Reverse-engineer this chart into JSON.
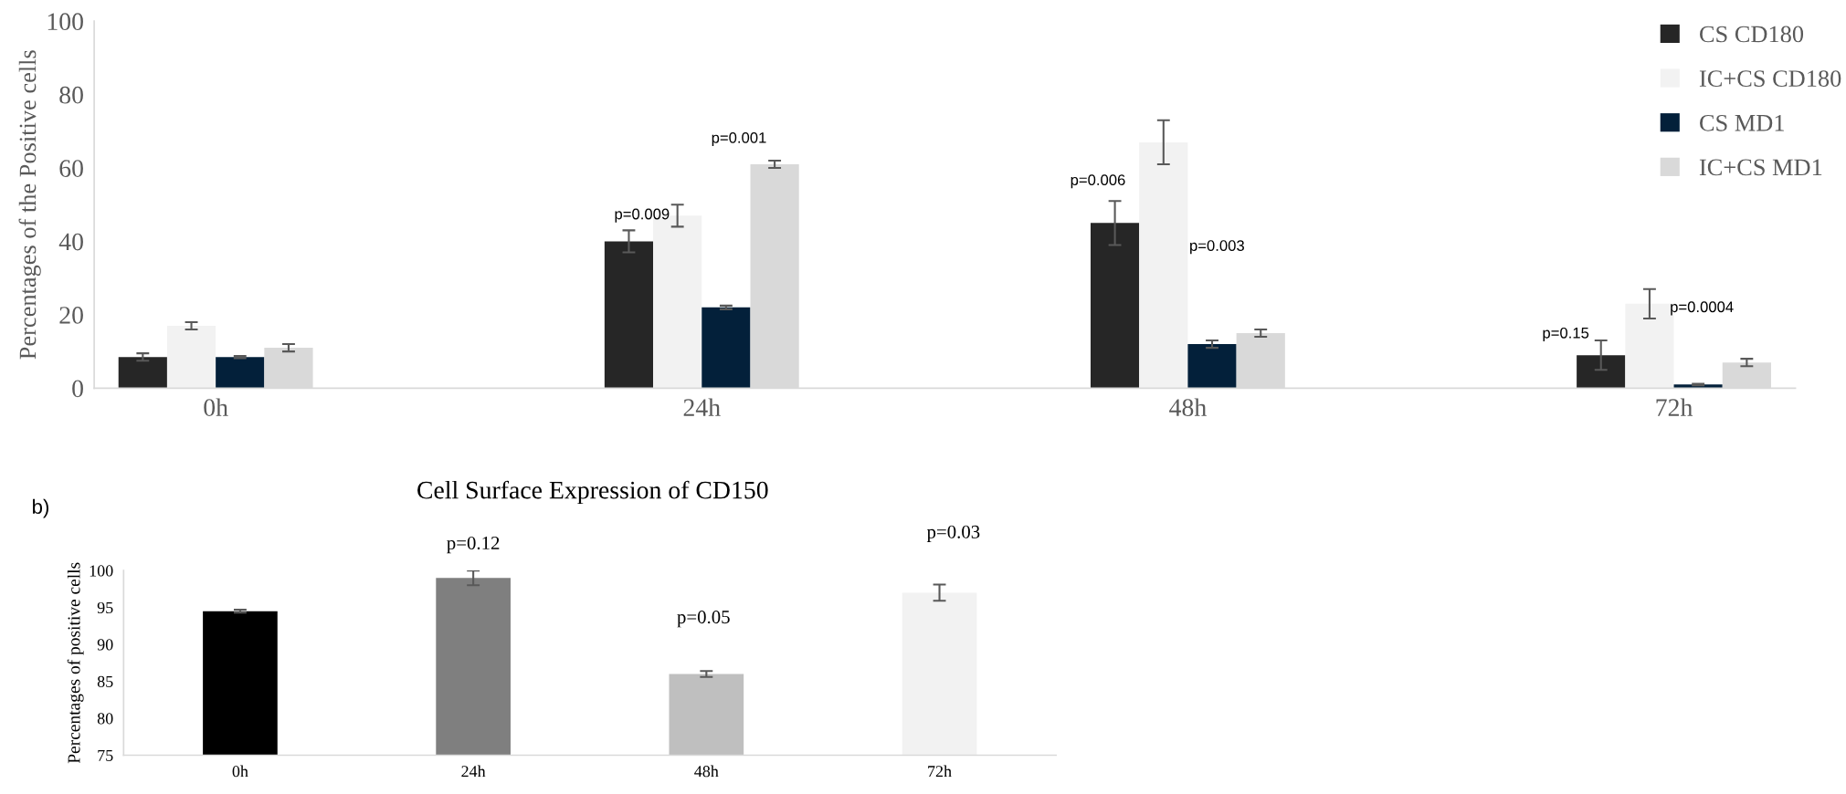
{
  "chart_data": [
    {
      "type": "bar",
      "ylabel": "Percentages of the Positive cells",
      "categories": [
        "0h",
        "24h",
        "48h",
        "72h"
      ],
      "series": [
        {
          "name": "CS CD180",
          "color": "#262626",
          "values": [
            8.5,
            40,
            45,
            9
          ],
          "errors": [
            1,
            3,
            6,
            4
          ]
        },
        {
          "name": "IC+CS CD180",
          "color": "#f2f2f2",
          "values": [
            17,
            47,
            67,
            23
          ],
          "errors": [
            1,
            3,
            6,
            4
          ]
        },
        {
          "name": "CS MD1",
          "color": "#03203a",
          "values": [
            8.5,
            22,
            12,
            1
          ],
          "errors": [
            0.3,
            0.5,
            1,
            0.2
          ]
        },
        {
          "name": "IC+CS MD1",
          "color": "#d9d9d9",
          "values": [
            11,
            61,
            15,
            7
          ],
          "errors": [
            1,
            1,
            1,
            1
          ]
        }
      ],
      "ylim": [
        0,
        100
      ],
      "yticks": [
        0,
        20,
        40,
        60,
        80,
        100
      ],
      "legend": "top right",
      "grid": false,
      "annotations": [
        "p=0.009",
        "p=0.001",
        "p=0.006",
        "p=0.003",
        "p=0.15",
        "p=0.0004"
      ]
    },
    {
      "type": "bar",
      "title": "Cell Surface Expression of CD150",
      "ylabel": "Percentages of positive cells",
      "categories": [
        "0h",
        "24h",
        "48h",
        "72h"
      ],
      "values": [
        94.5,
        99,
        86,
        97
      ],
      "errors": [
        0.2,
        1,
        0.4,
        1.1
      ],
      "colors": [
        "#000000",
        "#7f7f7f",
        "#bfbfbf",
        "#f2f2f2"
      ],
      "ylim": [
        75,
        100
      ],
      "yticks": [
        75,
        80,
        85,
        90,
        95,
        100
      ],
      "grid": false,
      "annotations": [
        "b)",
        "p=0.12",
        "p=0.05",
        "p=0.03"
      ]
    }
  ]
}
